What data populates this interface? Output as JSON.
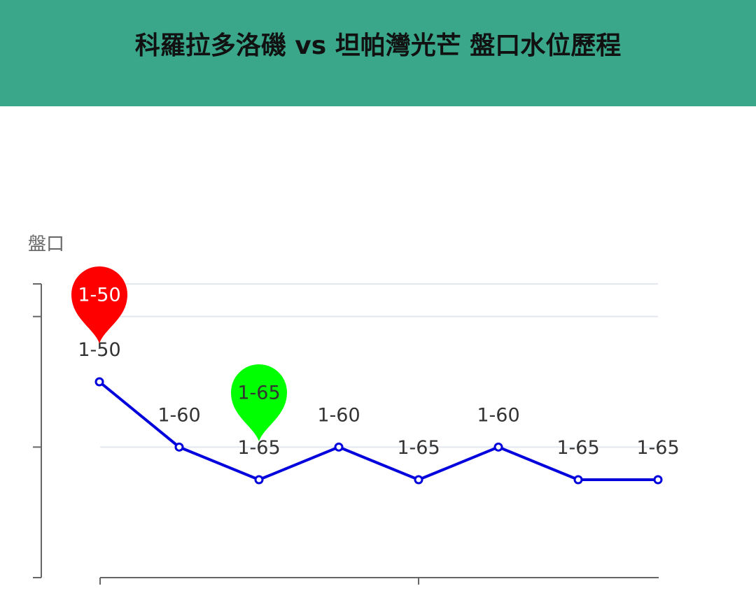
{
  "chart_data": {
    "type": "line",
    "title": "科羅拉多洛磯 vs 坦帕灣光芒 盤口水位歷程",
    "y_axis_name": "盤口",
    "series": [
      {
        "name": null,
        "color": "#0000dd",
        "values": [
          1.5,
          1.6,
          1.65,
          1.6,
          1.65,
          1.6,
          1.65,
          1.65
        ],
        "value_labels": [
          "1-50",
          "1-60",
          "1-65",
          "1-60",
          "1-65",
          "1-60",
          "1-65",
          "1-65"
        ]
      }
    ],
    "ylim": [
      1.35,
      1.8
    ],
    "y_inverse": true,
    "yticks": [
      1.35,
      1.4,
      1.6,
      1.8
    ],
    "grid": true,
    "min_pin_color": "#ff0000",
    "max_pin_color": "#00ff00"
  }
}
